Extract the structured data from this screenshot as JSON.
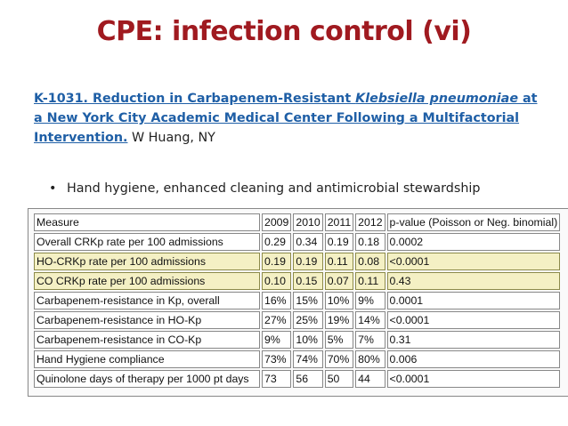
{
  "slide": {
    "title": "CPE: infection control (vi)"
  },
  "abstract": {
    "link_part1": "K-1031. Reduction in Carbapenem-Resistant ",
    "link_italic": "Klebsiella pneumoniae",
    "link_part2": " at a New York City Academic Medical Center Following a Multifactorial Intervention.",
    "author": " W Huang, NY"
  },
  "bullet": {
    "text": "Hand hygiene, enhanced cleaning and antimicrobial stewardship"
  },
  "table": {
    "headers": [
      "Measure",
      "2009",
      "2010",
      "2011",
      "2012",
      "p-value (Poisson or Neg. binomial)"
    ],
    "rows": [
      [
        "Overall CRKp rate per 100 admissions",
        "0.29",
        "0.34",
        "0.19",
        "0.18",
        "0.0002"
      ],
      [
        "HO-CRKp rate per 100 admissions",
        "0.19",
        "0.19",
        "0.11",
        "0.08",
        "<0.0001"
      ],
      [
        "CO CRKp rate per 100 admissions",
        "0.10",
        "0.15",
        "0.07",
        "0.11",
        "0.43"
      ],
      [
        "Carbapenem-resistance in Kp, overall",
        "16%",
        "15%",
        "10%",
        "9%",
        "0.0001"
      ],
      [
        "Carbapenem-resistance in HO-Kp",
        "27%",
        "25%",
        "19%",
        "14%",
        "<0.0001"
      ],
      [
        "Carbapenem-resistance in CO-Kp",
        "9%",
        "10%",
        "5%",
        "7%",
        "0.31"
      ],
      [
        "Hand Hygiene compliance",
        "73%",
        "74%",
        "70%",
        "80%",
        "0.006"
      ],
      [
        "Quinolone days of therapy per 1000 pt days",
        "73",
        "56",
        "50",
        "44",
        "<0.0001"
      ]
    ],
    "highlighted_rows": [
      1,
      2
    ],
    "highlight_color": "#f4f0c4"
  }
}
